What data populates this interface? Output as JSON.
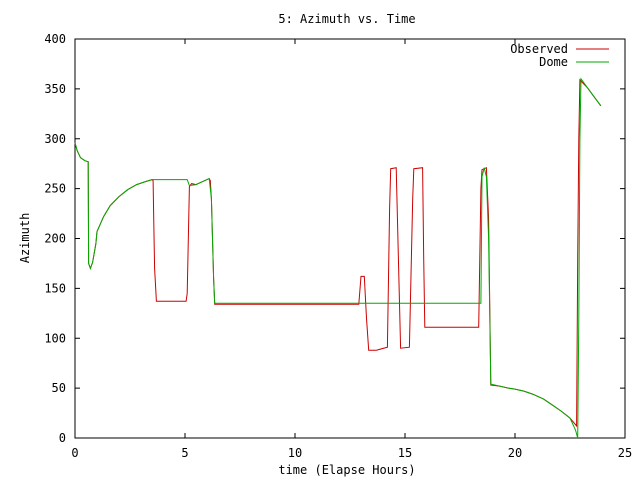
{
  "chart_data": {
    "type": "line",
    "title": "5: Azimuth vs. Time",
    "xlabel": "time (Elapse Hours)",
    "ylabel": "Azimuth",
    "xlim": [
      0,
      25
    ],
    "ylim": [
      0,
      400
    ],
    "xticks": [
      0,
      5,
      10,
      15,
      20,
      25
    ],
    "yticks": [
      0,
      50,
      100,
      150,
      200,
      250,
      300,
      350,
      400
    ],
    "grid": false,
    "legend_position": "top-right",
    "series": [
      {
        "name": "Observed",
        "color": "#cc0000",
        "points": [
          [
            0.0,
            296
          ],
          [
            0.1,
            288
          ],
          [
            0.25,
            281
          ],
          [
            0.45,
            278
          ],
          [
            0.6,
            277
          ],
          [
            0.62,
            175
          ],
          [
            0.7,
            170
          ],
          [
            0.8,
            176
          ],
          [
            0.95,
            195
          ],
          [
            1.0,
            207
          ],
          [
            1.3,
            222
          ],
          [
            1.6,
            233
          ],
          [
            2.0,
            242
          ],
          [
            2.4,
            249
          ],
          [
            2.8,
            254
          ],
          [
            3.2,
            257
          ],
          [
            3.5,
            259
          ],
          [
            3.55,
            258
          ],
          [
            3.58,
            215
          ],
          [
            3.62,
            170
          ],
          [
            3.7,
            137
          ],
          [
            5.05,
            137
          ],
          [
            5.1,
            145
          ],
          [
            5.2,
            252
          ],
          [
            5.3,
            255
          ],
          [
            5.5,
            254
          ],
          [
            5.8,
            257
          ],
          [
            6.1,
            260
          ],
          [
            6.15,
            258
          ],
          [
            6.2,
            240
          ],
          [
            6.25,
            200
          ],
          [
            6.3,
            160
          ],
          [
            6.35,
            134
          ],
          [
            12.9,
            134
          ],
          [
            13.0,
            162
          ],
          [
            13.15,
            162
          ],
          [
            13.25,
            120
          ],
          [
            13.35,
            88
          ],
          [
            13.7,
            88
          ],
          [
            14.2,
            91
          ],
          [
            14.3,
            230
          ],
          [
            14.35,
            270
          ],
          [
            14.6,
            271
          ],
          [
            14.7,
            180
          ],
          [
            14.8,
            90
          ],
          [
            15.2,
            91
          ],
          [
            15.35,
            240
          ],
          [
            15.4,
            270
          ],
          [
            15.8,
            271
          ],
          [
            15.85,
            180
          ],
          [
            15.9,
            111
          ],
          [
            18.35,
            111
          ],
          [
            18.45,
            250
          ],
          [
            18.5,
            269
          ],
          [
            18.7,
            271
          ],
          [
            18.8,
            220
          ],
          [
            18.9,
            53
          ],
          [
            19.3,
            52
          ],
          [
            19.7,
            50
          ],
          [
            20.0,
            49
          ],
          [
            20.4,
            47
          ],
          [
            20.8,
            44
          ],
          [
            21.3,
            39
          ],
          [
            21.7,
            33
          ],
          [
            22.1,
            27
          ],
          [
            22.5,
            20
          ],
          [
            22.8,
            12
          ],
          [
            22.85,
            180
          ],
          [
            22.9,
            300
          ],
          [
            22.95,
            359
          ],
          [
            23.3,
            351
          ],
          [
            23.6,
            342
          ],
          [
            23.9,
            333
          ]
        ]
      },
      {
        "name": "Dome",
        "color": "#00aa00",
        "points": [
          [
            0.0,
            296
          ],
          [
            0.1,
            288
          ],
          [
            0.25,
            281
          ],
          [
            0.45,
            278
          ],
          [
            0.6,
            277
          ],
          [
            0.62,
            175
          ],
          [
            0.7,
            170
          ],
          [
            0.8,
            176
          ],
          [
            0.95,
            195
          ],
          [
            1.0,
            207
          ],
          [
            1.3,
            222
          ],
          [
            1.6,
            233
          ],
          [
            2.0,
            242
          ],
          [
            2.4,
            249
          ],
          [
            2.8,
            254
          ],
          [
            3.2,
            257
          ],
          [
            3.5,
            259
          ],
          [
            5.1,
            259
          ],
          [
            5.2,
            253
          ],
          [
            5.5,
            254
          ],
          [
            5.8,
            257
          ],
          [
            6.1,
            260
          ],
          [
            6.2,
            240
          ],
          [
            6.25,
            200
          ],
          [
            6.3,
            160
          ],
          [
            6.35,
            135
          ],
          [
            18.45,
            135
          ],
          [
            18.5,
            262
          ],
          [
            18.6,
            271
          ],
          [
            18.7,
            262
          ],
          [
            18.8,
            200
          ],
          [
            18.9,
            54
          ],
          [
            19.3,
            52
          ],
          [
            19.7,
            50
          ],
          [
            20.0,
            49
          ],
          [
            20.4,
            47
          ],
          [
            20.8,
            44
          ],
          [
            21.3,
            39
          ],
          [
            21.7,
            33
          ],
          [
            22.1,
            27
          ],
          [
            22.5,
            20
          ],
          [
            22.75,
            8
          ],
          [
            22.85,
            0
          ],
          [
            22.9,
            120
          ],
          [
            22.95,
            300
          ],
          [
            23.0,
            360
          ],
          [
            23.3,
            351
          ],
          [
            23.6,
            342
          ],
          [
            23.9,
            333
          ]
        ]
      }
    ]
  }
}
